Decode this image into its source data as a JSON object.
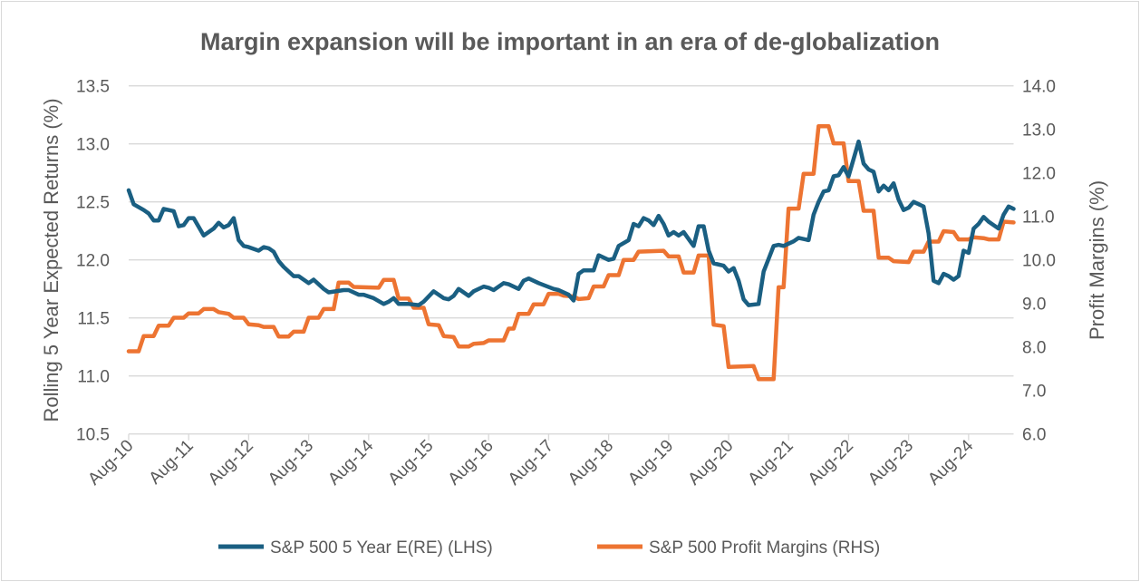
{
  "chart_data": {
    "type": "line",
    "title": "Margin expansion will be important in an era of de-globalization",
    "ylabel_left": "Rolling 5 Year Expected Returns (%)",
    "ylabel_right": "Profit Margins (%)",
    "ylim_left": [
      10.5,
      13.5
    ],
    "ylim_right": [
      6.0,
      14.0
    ],
    "yticks_left": [
      "10.5",
      "11.0",
      "11.5",
      "12.0",
      "12.5",
      "13.0",
      "13.5"
    ],
    "yticks_right": [
      "6.0",
      "7.0",
      "8.0",
      "9.0",
      "10.0",
      "11.0",
      "12.0",
      "13.0",
      "14.0"
    ],
    "xlim": [
      "2010-08",
      "2025-05"
    ],
    "xticks": [
      "Aug-10",
      "Aug-11",
      "Aug-12",
      "Aug-13",
      "Aug-14",
      "Aug-15",
      "Aug-16",
      "Aug-17",
      "Aug-18",
      "Aug-19",
      "Aug-20",
      "Aug-21",
      "Aug-22",
      "Aug-23",
      "Aug-24"
    ],
    "grid": "horizontal",
    "legend_position": "bottom",
    "series": [
      {
        "name": "S&P 500 5 Year E(RE) (LHS)",
        "axis": "left",
        "color": "#1a5f82",
        "points": [
          [
            "2010-08",
            12.6
          ],
          [
            "2010-09",
            12.48
          ],
          [
            "2010-11",
            12.43
          ],
          [
            "2010-12",
            12.4
          ],
          [
            "2011-01",
            12.34
          ],
          [
            "2011-02",
            12.34
          ],
          [
            "2011-03",
            12.44
          ],
          [
            "2011-05",
            12.42
          ],
          [
            "2011-06",
            12.29
          ],
          [
            "2011-07",
            12.3
          ],
          [
            "2011-08",
            12.36
          ],
          [
            "2011-09",
            12.36
          ],
          [
            "2011-11",
            12.21
          ],
          [
            "2012-01",
            12.27
          ],
          [
            "2012-02",
            12.32
          ],
          [
            "2012-03",
            12.28
          ],
          [
            "2012-04",
            12.3
          ],
          [
            "2012-05",
            12.36
          ],
          [
            "2012-06",
            12.17
          ],
          [
            "2012-07",
            12.12
          ],
          [
            "2012-08",
            12.11
          ],
          [
            "2012-10",
            12.08
          ],
          [
            "2012-11",
            12.11
          ],
          [
            "2012-12",
            12.1
          ],
          [
            "2013-01",
            12.07
          ],
          [
            "2013-02",
            11.99
          ],
          [
            "2013-03",
            11.94
          ],
          [
            "2013-05",
            11.86
          ],
          [
            "2013-06",
            11.86
          ],
          [
            "2013-08",
            11.8
          ],
          [
            "2013-09",
            11.83
          ],
          [
            "2013-11",
            11.75
          ],
          [
            "2013-12",
            11.72
          ],
          [
            "2014-03",
            11.74
          ],
          [
            "2014-04",
            11.74
          ],
          [
            "2014-06",
            11.7
          ],
          [
            "2014-07",
            11.7
          ],
          [
            "2014-09",
            11.67
          ],
          [
            "2014-11",
            11.62
          ],
          [
            "2014-12",
            11.64
          ],
          [
            "2015-01",
            11.67
          ],
          [
            "2015-02",
            11.62
          ],
          [
            "2015-04",
            11.62
          ],
          [
            "2015-06",
            11.61
          ],
          [
            "2015-07",
            11.64
          ],
          [
            "2015-09",
            11.73
          ],
          [
            "2015-11",
            11.67
          ],
          [
            "2015-12",
            11.66
          ],
          [
            "2016-01",
            11.69
          ],
          [
            "2016-02",
            11.75
          ],
          [
            "2016-04",
            11.69
          ],
          [
            "2016-05",
            11.73
          ],
          [
            "2016-07",
            11.77
          ],
          [
            "2016-08",
            11.76
          ],
          [
            "2016-09",
            11.74
          ],
          [
            "2016-11",
            11.8
          ],
          [
            "2016-12",
            11.79
          ],
          [
            "2017-02",
            11.75
          ],
          [
            "2017-03",
            11.82
          ],
          [
            "2017-04",
            11.84
          ],
          [
            "2017-06",
            11.8
          ],
          [
            "2017-09",
            11.75
          ],
          [
            "2017-10",
            11.74
          ],
          [
            "2017-12",
            11.7
          ],
          [
            "2018-01",
            11.65
          ],
          [
            "2018-02",
            11.88
          ],
          [
            "2018-03",
            11.91
          ],
          [
            "2018-05",
            11.91
          ],
          [
            "2018-06",
            12.04
          ],
          [
            "2018-08",
            12.0
          ],
          [
            "2018-09",
            12.01
          ],
          [
            "2018-10",
            12.12
          ],
          [
            "2018-12",
            12.17
          ],
          [
            "2019-01",
            12.31
          ],
          [
            "2019-02",
            12.29
          ],
          [
            "2019-03",
            12.36
          ],
          [
            "2019-04",
            12.34
          ],
          [
            "2019-05",
            12.3
          ],
          [
            "2019-06",
            12.38
          ],
          [
            "2019-07",
            12.31
          ],
          [
            "2019-08",
            12.21
          ],
          [
            "2019-09",
            12.24
          ],
          [
            "2019-10",
            12.21
          ],
          [
            "2019-11",
            12.24
          ],
          [
            "2020-01",
            12.12
          ],
          [
            "2020-02",
            12.29
          ],
          [
            "2020-03",
            12.29
          ],
          [
            "2020-04",
            12.08
          ],
          [
            "2020-05",
            11.97
          ],
          [
            "2020-07",
            11.95
          ],
          [
            "2020-08",
            11.9
          ],
          [
            "2020-09",
            11.93
          ],
          [
            "2020-10",
            11.82
          ],
          [
            "2020-11",
            11.66
          ],
          [
            "2020-12",
            11.61
          ],
          [
            "2021-02",
            11.62
          ],
          [
            "2021-03",
            11.9
          ],
          [
            "2021-04",
            12.01
          ],
          [
            "2021-05",
            12.12
          ],
          [
            "2021-06",
            12.13
          ],
          [
            "2021-07",
            12.12
          ],
          [
            "2021-09",
            12.16
          ],
          [
            "2021-10",
            12.19
          ],
          [
            "2021-12",
            12.17
          ],
          [
            "2022-01",
            12.39
          ],
          [
            "2022-02",
            12.5
          ],
          [
            "2022-03",
            12.59
          ],
          [
            "2022-04",
            12.6
          ],
          [
            "2022-05",
            12.72
          ],
          [
            "2022-06",
            12.73
          ],
          [
            "2022-07",
            12.8
          ],
          [
            "2022-08",
            12.72
          ],
          [
            "2022-10",
            13.02
          ],
          [
            "2022-11",
            12.83
          ],
          [
            "2022-12",
            12.78
          ],
          [
            "2023-01",
            12.76
          ],
          [
            "2023-02",
            12.59
          ],
          [
            "2023-03",
            12.64
          ],
          [
            "2023-04",
            12.6
          ],
          [
            "2023-05",
            12.66
          ],
          [
            "2023-06",
            12.52
          ],
          [
            "2023-07",
            12.43
          ],
          [
            "2023-08",
            12.45
          ],
          [
            "2023-09",
            12.5
          ],
          [
            "2023-11",
            12.46
          ],
          [
            "2023-12",
            12.23
          ],
          [
            "2024-01",
            11.82
          ],
          [
            "2024-02",
            11.8
          ],
          [
            "2024-03",
            11.88
          ],
          [
            "2024-04",
            11.86
          ],
          [
            "2024-05",
            11.83
          ],
          [
            "2024-06",
            11.86
          ],
          [
            "2024-07",
            12.08
          ],
          [
            "2024-08",
            12.06
          ],
          [
            "2024-09",
            12.27
          ],
          [
            "2024-10",
            12.31
          ],
          [
            "2024-11",
            12.37
          ],
          [
            "2024-12",
            12.33
          ],
          [
            "2025-01",
            12.3
          ],
          [
            "2025-02",
            12.27
          ],
          [
            "2025-03",
            12.39
          ],
          [
            "2025-04",
            12.46
          ],
          [
            "2025-05",
            12.44
          ]
        ]
      },
      {
        "name": "S&P 500 Profit Margins (RHS)",
        "axis": "right",
        "color": "#ed7432",
        "points": [
          [
            "2010-08",
            7.9
          ],
          [
            "2010-10",
            7.9
          ],
          [
            "2010-11",
            8.25
          ],
          [
            "2011-01",
            8.25
          ],
          [
            "2011-02",
            8.49
          ],
          [
            "2011-04",
            8.49
          ],
          [
            "2011-05",
            8.67
          ],
          [
            "2011-07",
            8.67
          ],
          [
            "2011-08",
            8.77
          ],
          [
            "2011-10",
            8.77
          ],
          [
            "2011-11",
            8.87
          ],
          [
            "2012-01",
            8.87
          ],
          [
            "2012-02",
            8.8
          ],
          [
            "2012-04",
            8.76
          ],
          [
            "2012-05",
            8.67
          ],
          [
            "2012-07",
            8.67
          ],
          [
            "2012-08",
            8.52
          ],
          [
            "2012-10",
            8.5
          ],
          [
            "2012-11",
            8.46
          ],
          [
            "2013-01",
            8.46
          ],
          [
            "2013-02",
            8.24
          ],
          [
            "2013-04",
            8.24
          ],
          [
            "2013-05",
            8.35
          ],
          [
            "2013-07",
            8.35
          ],
          [
            "2013-08",
            8.67
          ],
          [
            "2013-10",
            8.67
          ],
          [
            "2013-11",
            8.87
          ],
          [
            "2014-01",
            8.87
          ],
          [
            "2014-02",
            9.48
          ],
          [
            "2014-04",
            9.48
          ],
          [
            "2014-05",
            9.38
          ],
          [
            "2014-10",
            9.36
          ],
          [
            "2014-11",
            9.54
          ],
          [
            "2015-01",
            9.54
          ],
          [
            "2015-02",
            9.11
          ],
          [
            "2015-04",
            9.11
          ],
          [
            "2015-05",
            8.9
          ],
          [
            "2015-07",
            8.9
          ],
          [
            "2015-08",
            8.52
          ],
          [
            "2015-10",
            8.5
          ],
          [
            "2015-11",
            8.25
          ],
          [
            "2016-01",
            8.23
          ],
          [
            "2016-02",
            8.01
          ],
          [
            "2016-04",
            8.01
          ],
          [
            "2016-05",
            8.07
          ],
          [
            "2016-07",
            8.09
          ],
          [
            "2016-08",
            8.15
          ],
          [
            "2016-11",
            8.15
          ],
          [
            "2016-12",
            8.42
          ],
          [
            "2017-01",
            8.42
          ],
          [
            "2017-02",
            8.76
          ],
          [
            "2017-04",
            8.76
          ],
          [
            "2017-05",
            8.98
          ],
          [
            "2017-07",
            8.98
          ],
          [
            "2017-08",
            9.22
          ],
          [
            "2017-10",
            9.22
          ],
          [
            "2017-11",
            9.18
          ],
          [
            "2018-01",
            9.16
          ],
          [
            "2018-02",
            9.1
          ],
          [
            "2018-04",
            9.12
          ],
          [
            "2018-05",
            9.39
          ],
          [
            "2018-07",
            9.39
          ],
          [
            "2018-08",
            9.65
          ],
          [
            "2018-10",
            9.65
          ],
          [
            "2018-11",
            10.0
          ],
          [
            "2019-01",
            10.0
          ],
          [
            "2019-02",
            10.19
          ],
          [
            "2019-07",
            10.21
          ],
          [
            "2019-08",
            10.08
          ],
          [
            "2019-10",
            10.08
          ],
          [
            "2019-11",
            9.71
          ],
          [
            "2020-01",
            9.71
          ],
          [
            "2020-02",
            10.1
          ],
          [
            "2020-04",
            10.1
          ],
          [
            "2020-05",
            8.51
          ],
          [
            "2020-07",
            8.48
          ],
          [
            "2020-08",
            7.54
          ],
          [
            "2021-01",
            7.56
          ],
          [
            "2021-02",
            7.26
          ],
          [
            "2021-05",
            7.26
          ],
          [
            "2021-06",
            9.37
          ],
          [
            "2021-07",
            9.37
          ],
          [
            "2021-08",
            11.18
          ],
          [
            "2021-10",
            11.18
          ],
          [
            "2021-11",
            11.98
          ],
          [
            "2022-01",
            11.98
          ],
          [
            "2022-02",
            13.07
          ],
          [
            "2022-04",
            13.07
          ],
          [
            "2022-05",
            12.68
          ],
          [
            "2022-07",
            12.68
          ],
          [
            "2022-08",
            11.81
          ],
          [
            "2022-10",
            11.81
          ],
          [
            "2022-11",
            11.13
          ],
          [
            "2023-01",
            11.13
          ],
          [
            "2023-02",
            10.05
          ],
          [
            "2023-04",
            10.05
          ],
          [
            "2023-05",
            9.97
          ],
          [
            "2023-08",
            9.95
          ],
          [
            "2023-09",
            10.19
          ],
          [
            "2023-11",
            10.19
          ],
          [
            "2023-12",
            10.42
          ],
          [
            "2024-02",
            10.42
          ],
          [
            "2024-03",
            10.66
          ],
          [
            "2024-05",
            10.64
          ],
          [
            "2024-06",
            10.47
          ],
          [
            "2024-08",
            10.47
          ],
          [
            "2024-09",
            10.52
          ],
          [
            "2024-11",
            10.5
          ],
          [
            "2024-12",
            10.47
          ],
          [
            "2025-02",
            10.47
          ],
          [
            "2025-03",
            10.88
          ],
          [
            "2025-05",
            10.86
          ]
        ]
      }
    ]
  }
}
